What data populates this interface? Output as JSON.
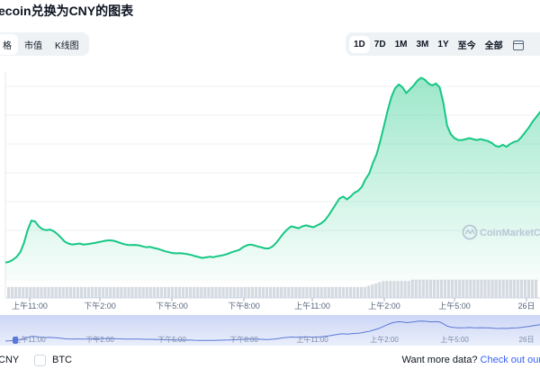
{
  "title": "ecoin兑换为CNY的图表",
  "left_tabs": [
    {
      "label": "格",
      "active": true
    },
    {
      "label": "市值",
      "active": false
    },
    {
      "label": "K线图",
      "active": false
    }
  ],
  "range_tabs": [
    {
      "label": "1D",
      "active": true
    },
    {
      "label": "7D",
      "active": false
    },
    {
      "label": "1M",
      "active": false
    },
    {
      "label": "3M",
      "active": false
    },
    {
      "label": "1Y",
      "active": false
    },
    {
      "label": "至今",
      "active": false
    },
    {
      "label": "全部",
      "active": false
    }
  ],
  "calendar_icon": "calendar-icon",
  "watermark": "CoinMarketCap",
  "time_labels": [
    "上午11:00",
    "下午2:00",
    "下午5:00",
    "下午8:00",
    "上午11:00",
    "上午2:00",
    "上午5:00",
    "26日"
  ],
  "footer": {
    "cny_label": "CNY",
    "btc_label": "BTC",
    "more_text": "Want more data?",
    "more_link": "Check out our"
  },
  "colors": {
    "accent_green": "#16c784",
    "link_blue": "#3861fb"
  },
  "chart_data": {
    "type": "area",
    "y_axis_labels_visible": false,
    "series": [
      {
        "values": [
          0.6,
          1.0,
          2.0,
          3.5,
          6.0,
          10.8,
          17.5,
          22.5,
          22.0,
          19.5,
          18.0,
          17.5,
          17.8,
          17.0,
          15.5,
          13.5,
          11.5,
          10.5,
          10.0,
          10.3,
          10.5,
          10.0,
          10.2,
          10.5,
          10.8,
          11.2,
          11.6,
          12.0,
          12.2,
          12.0,
          11.5,
          10.8,
          10.2,
          9.8,
          9.7,
          9.8,
          9.6,
          9.0,
          8.6,
          8.8,
          8.2,
          7.8,
          7.2,
          6.5,
          6.0,
          5.6,
          5.4,
          5.5,
          5.3,
          5.0,
          4.6,
          4.0,
          3.5,
          3.0,
          3.3,
          3.6,
          3.4,
          3.9,
          4.2,
          4.6,
          5.2,
          6.0,
          6.6,
          7.2,
          8.6,
          9.6,
          10.0,
          9.6,
          9.0,
          8.5,
          8.0,
          8.0,
          9.0,
          11.0,
          13.5,
          16.0,
          18.0,
          19.5,
          19.0,
          18.5,
          19.5,
          20.0,
          19.5,
          19.0,
          20.0,
          21.0,
          22.5,
          25.0,
          28.0,
          31.0,
          34.0,
          35.0,
          33.5,
          35.0,
          37.0,
          38.0,
          40.0,
          44.0,
          47.0,
          52.5,
          57.0,
          64.0,
          72.0,
          80.0,
          87.0,
          91.5,
          93.5,
          92.0,
          89.0,
          91.0,
          93.0,
          95.5,
          97.0,
          96.0,
          94.0,
          93.0,
          94.0,
          92.0,
          84.0,
          72.0,
          67.5,
          65.5,
          64.5,
          64.5,
          65.0,
          65.5,
          65.0,
          64.5,
          65.0,
          64.5,
          64.0,
          63.0,
          61.5,
          61.0,
          62.0,
          61.0,
          62.5,
          63.5,
          64.0,
          66.0,
          68.5,
          71.0,
          74.0,
          76.5,
          79.0,
          81.0
        ]
      }
    ],
    "volume": [
      9,
      9,
      9,
      9,
      9,
      9,
      9,
      9,
      9,
      9,
      9,
      9,
      9,
      9,
      9,
      9,
      9,
      9,
      9,
      9,
      9,
      9,
      9,
      9,
      9,
      9,
      9,
      9,
      9,
      9,
      9,
      9,
      9,
      9,
      9,
      9,
      9,
      9,
      9,
      9,
      9,
      9,
      9,
      9,
      9,
      9,
      9,
      9,
      9,
      9,
      9,
      9,
      9,
      9,
      9,
      9,
      9,
      9,
      9,
      9,
      9,
      9,
      9,
      9,
      9,
      9,
      9,
      9,
      9,
      9,
      9,
      9,
      9,
      9,
      9,
      9,
      9,
      9,
      9,
      9,
      9,
      9,
      9,
      9,
      9,
      9,
      9,
      9,
      9,
      9,
      9,
      9,
      9,
      9,
      9,
      9,
      9,
      9,
      9,
      10,
      11,
      12,
      13,
      14,
      14,
      14,
      14,
      14,
      14,
      14,
      14,
      15,
      15,
      15,
      15,
      15,
      15,
      15,
      15,
      15,
      15,
      15,
      15,
      15,
      15,
      15,
      15,
      15,
      15,
      15,
      15,
      15,
      15,
      15,
      15,
      15,
      15,
      15,
      15,
      15,
      15,
      15,
      15,
      15,
      15,
      15
    ]
  }
}
